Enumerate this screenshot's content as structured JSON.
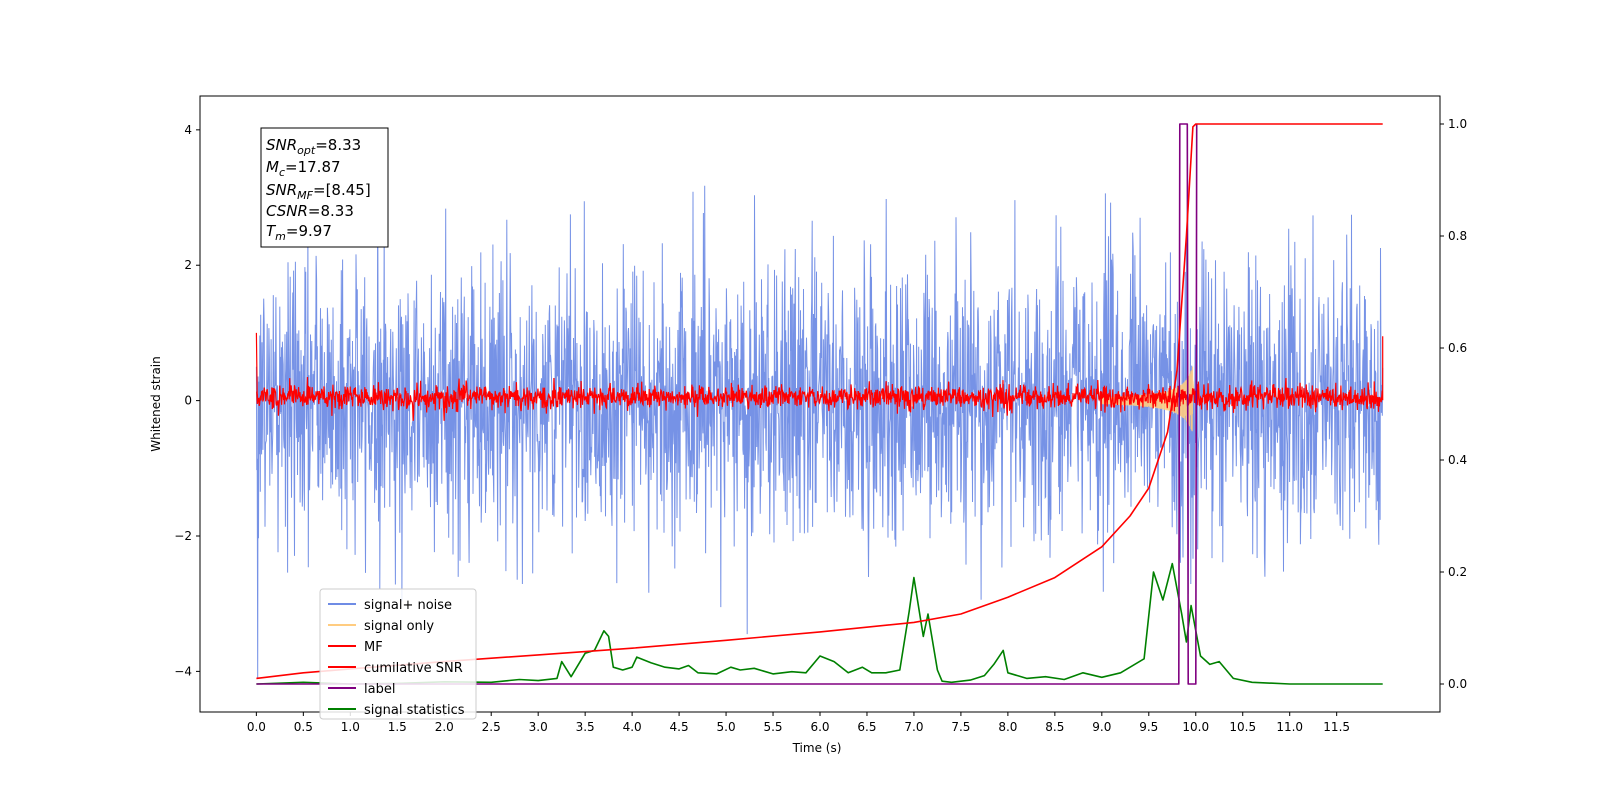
{
  "chart_data": {
    "type": "line",
    "xlabel": "Time (s)",
    "ylabel": "Whitened strain",
    "xlim": [
      -0.6,
      12.6
    ],
    "ylim": [
      -4.6,
      4.5
    ],
    "ylim_right": [
      -0.05,
      1.05
    ],
    "x_ticks": [
      "0.0",
      "0.5",
      "1.0",
      "1.5",
      "2.0",
      "2.5",
      "3.0",
      "3.5",
      "4.0",
      "4.5",
      "5.0",
      "5.5",
      "6.0",
      "6.5",
      "7.0",
      "7.5",
      "8.0",
      "8.5",
      "9.0",
      "9.5",
      "10.0",
      "10.5",
      "11.0",
      "11.5"
    ],
    "y_ticks_left": [
      -4,
      -2,
      0,
      2,
      4
    ],
    "y_ticks_left_labels": [
      "−4",
      "−2",
      "0",
      "2",
      "4"
    ],
    "y_ticks_right": [
      0.0,
      0.2,
      0.4,
      0.6,
      0.8,
      1.0
    ],
    "y_ticks_right_labels": [
      "0.0",
      "0.2",
      "0.4",
      "0.6",
      "0.8",
      "1.0"
    ],
    "annotation": {
      "snr_opt": {
        "sym": "SNR",
        "sub": "opt",
        "value": "=8.33"
      },
      "mc": {
        "sym": "M",
        "sub": "c",
        "value": "=17.87"
      },
      "snr_mf": {
        "sym": "SNR",
        "sub": "MF",
        "value": "=[8.45]"
      },
      "csnr": {
        "sym": "CSNR",
        "sub": "",
        "value": "=8.33"
      },
      "tm": {
        "sym": "T",
        "sub": "m",
        "value": "=9.97"
      }
    },
    "legend": [
      {
        "name": "signal+ noise",
        "color": "#6f8ce5"
      },
      {
        "name": "signal only",
        "color": "#ffcc80"
      },
      {
        "name": "MF",
        "color": "#ff0000"
      },
      {
        "name": "cumilative SNR",
        "color": "#ff0000"
      },
      {
        "name": "label",
        "color": "#800080"
      },
      {
        "name": "signal statistics",
        "color": "#008000"
      }
    ],
    "series": [
      {
        "name": "signal+ noise",
        "axis": "left",
        "kind": "noise",
        "color": "#6f8ce5",
        "x_range": [
          0,
          11.99
        ],
        "typical_amplitude": [
          -2.0,
          2.0
        ],
        "extremes": [
          -4.1,
          4.05
        ]
      },
      {
        "name": "signal only",
        "axis": "left",
        "kind": "chirp",
        "color": "#ffcc80",
        "x_range": [
          9.0,
          10.0
        ],
        "peak_time": 9.97,
        "peak_amplitude": 0.55
      },
      {
        "name": "MF",
        "axis": "left",
        "kind": "noise",
        "color": "#ff0000",
        "x_range": [
          0,
          11.99
        ],
        "typical_amplitude": [
          -0.25,
          0.3
        ],
        "points": [
          [
            0.0,
            1.0
          ],
          [
            0.02,
            0.5
          ],
          [
            11.98,
            0.7
          ],
          [
            11.99,
            0.95
          ]
        ]
      },
      {
        "name": "cumilative SNR",
        "axis": "right",
        "color": "#ff0000",
        "points": [
          [
            0.0,
            0.01
          ],
          [
            0.5,
            0.02
          ],
          [
            1.0,
            0.027
          ],
          [
            2.0,
            0.04
          ],
          [
            3.0,
            0.052
          ],
          [
            4.0,
            0.064
          ],
          [
            5.0,
            0.078
          ],
          [
            6.0,
            0.093
          ],
          [
            7.0,
            0.11
          ],
          [
            7.5,
            0.125
          ],
          [
            8.0,
            0.155
          ],
          [
            8.5,
            0.19
          ],
          [
            9.0,
            0.245
          ],
          [
            9.3,
            0.3
          ],
          [
            9.5,
            0.35
          ],
          [
            9.7,
            0.45
          ],
          [
            9.8,
            0.56
          ],
          [
            9.9,
            0.8
          ],
          [
            9.97,
            0.995
          ],
          [
            10.0,
            1.0
          ],
          [
            11.99,
            1.0
          ]
        ]
      },
      {
        "name": "label",
        "axis": "right",
        "color": "#800080",
        "points": [
          [
            0.0,
            0.0
          ],
          [
            9.82,
            0.0
          ],
          [
            9.83,
            1.0
          ],
          [
            9.91,
            1.0
          ],
          [
            9.92,
            0.0
          ],
          [
            10.0,
            0.0
          ],
          [
            10.01,
            1.0
          ]
        ]
      },
      {
        "name": "signal statistics",
        "axis": "right",
        "color": "#008000",
        "points": [
          [
            0.0,
            0.0
          ],
          [
            0.5,
            0.003
          ],
          [
            1.0,
            0.0
          ],
          [
            1.5,
            0.001
          ],
          [
            2.0,
            0.004
          ],
          [
            2.5,
            0.003
          ],
          [
            2.8,
            0.008
          ],
          [
            3.0,
            0.006
          ],
          [
            3.2,
            0.01
          ],
          [
            3.25,
            0.04
          ],
          [
            3.35,
            0.013
          ],
          [
            3.5,
            0.055
          ],
          [
            3.6,
            0.06
          ],
          [
            3.7,
            0.095
          ],
          [
            3.75,
            0.085
          ],
          [
            3.8,
            0.03
          ],
          [
            3.9,
            0.025
          ],
          [
            4.0,
            0.03
          ],
          [
            4.05,
            0.048
          ],
          [
            4.2,
            0.038
          ],
          [
            4.35,
            0.03
          ],
          [
            4.5,
            0.027
          ],
          [
            4.6,
            0.033
          ],
          [
            4.7,
            0.02
          ],
          [
            4.9,
            0.018
          ],
          [
            5.05,
            0.03
          ],
          [
            5.15,
            0.025
          ],
          [
            5.3,
            0.028
          ],
          [
            5.5,
            0.018
          ],
          [
            5.7,
            0.022
          ],
          [
            5.85,
            0.02
          ],
          [
            6.0,
            0.05
          ],
          [
            6.15,
            0.04
          ],
          [
            6.3,
            0.02
          ],
          [
            6.45,
            0.03
          ],
          [
            6.55,
            0.02
          ],
          [
            6.7,
            0.02
          ],
          [
            6.85,
            0.025
          ],
          [
            6.95,
            0.13
          ],
          [
            7.0,
            0.19
          ],
          [
            7.1,
            0.085
          ],
          [
            7.15,
            0.125
          ],
          [
            7.25,
            0.025
          ],
          [
            7.3,
            0.005
          ],
          [
            7.4,
            0.003
          ],
          [
            7.6,
            0.007
          ],
          [
            7.75,
            0.015
          ],
          [
            7.85,
            0.035
          ],
          [
            7.95,
            0.06
          ],
          [
            8.0,
            0.02
          ],
          [
            8.2,
            0.01
          ],
          [
            8.4,
            0.013
          ],
          [
            8.6,
            0.008
          ],
          [
            8.8,
            0.02
          ],
          [
            9.0,
            0.012
          ],
          [
            9.2,
            0.02
          ],
          [
            9.45,
            0.045
          ],
          [
            9.55,
            0.2
          ],
          [
            9.65,
            0.15
          ],
          [
            9.75,
            0.215
          ],
          [
            9.85,
            0.125
          ],
          [
            9.9,
            0.075
          ],
          [
            9.95,
            0.14
          ],
          [
            10.05,
            0.05
          ],
          [
            10.15,
            0.035
          ],
          [
            10.25,
            0.04
          ],
          [
            10.4,
            0.01
          ],
          [
            10.6,
            0.003
          ],
          [
            11.0,
            0.0
          ],
          [
            11.99,
            0.0
          ]
        ]
      }
    ]
  }
}
